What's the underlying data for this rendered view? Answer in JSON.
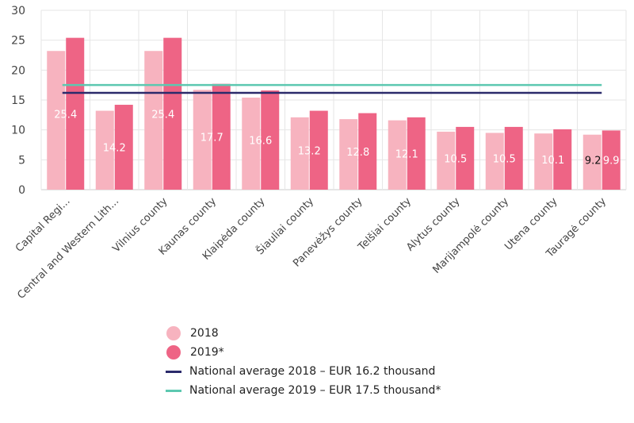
{
  "chart_data": {
    "type": "bar",
    "categories": [
      "Capital Regi...",
      "Central and Western Lith...",
      "Vilnius county",
      "Kaunas county",
      "Klaipėda county",
      "Šiauliai county",
      "Panevėžys county",
      "Telšiai county",
      "Alytus county",
      "Marijampolė county",
      "Utena county",
      "Tauragė county"
    ],
    "series": [
      {
        "name": "2018",
        "color": "#f7b3bf",
        "values": [
          23.2,
          13.2,
          23.2,
          16.7,
          15.4,
          12.1,
          11.8,
          11.6,
          9.7,
          9.5,
          9.4,
          9.2
        ]
      },
      {
        "name": "2019*",
        "color": "#ee6485",
        "values": [
          25.4,
          14.2,
          25.4,
          17.7,
          16.6,
          13.2,
          12.8,
          12.1,
          10.5,
          10.5,
          10.1,
          9.9
        ]
      }
    ],
    "data_labels": [
      "25.4",
      "14.2",
      "25.4",
      "17.7",
      "16.6",
      "13.2",
      "12.8",
      "12.1",
      "10.5",
      "10.5",
      "10.1",
      "9.9"
    ],
    "extra_label": {
      "category_index": 11,
      "text": "9.2"
    },
    "reference_lines": [
      {
        "name": "National average 2018 – EUR 16.2 thousand",
        "value": 16.2,
        "color": "#2b2a6b"
      },
      {
        "name": "National average 2019 – EUR 17.5 thousand*",
        "value": 17.5,
        "color": "#5cc8b0"
      }
    ],
    "ylim": [
      0,
      30
    ],
    "yticks": [
      0,
      5,
      10,
      15,
      20,
      25,
      30
    ],
    "grid": true,
    "legend_position": "bottom-center",
    "xlabel": "",
    "ylabel": ""
  }
}
